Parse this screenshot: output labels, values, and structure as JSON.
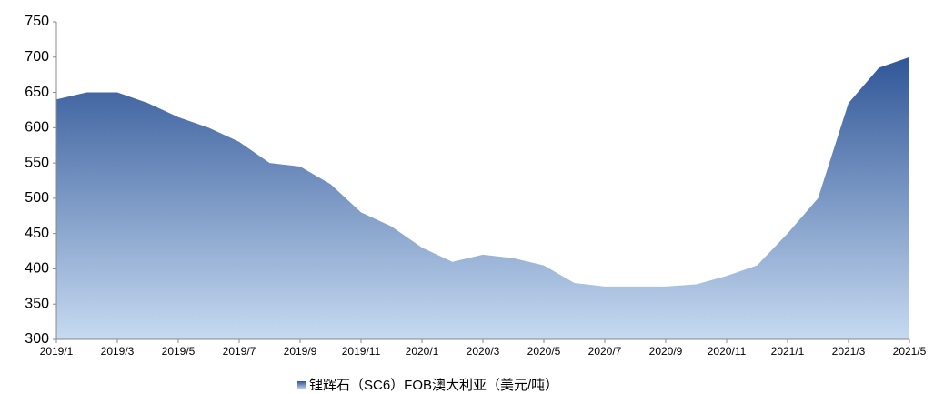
{
  "chart_data": {
    "type": "area",
    "categories": [
      "2019/1",
      null,
      "2019/3",
      null,
      "2019/5",
      null,
      "2019/7",
      null,
      "2019/9",
      null,
      "2019/11",
      null,
      "2020/1",
      null,
      "2020/3",
      null,
      "2020/5",
      null,
      "2020/7",
      null,
      "2020/9",
      null,
      "2020/11",
      null,
      "2021/1",
      null,
      "2021/3",
      null,
      "2021/5"
    ],
    "series": [
      {
        "name": "锂辉石（SC6）FOB澳大利亚（美元/吨）",
        "color": "#2f5597",
        "values": [
          640,
          650,
          650,
          635,
          615,
          600,
          580,
          550,
          545,
          520,
          480,
          460,
          430,
          410,
          420,
          415,
          405,
          380,
          375,
          375,
          375,
          378,
          390,
          405,
          450,
          500,
          635,
          685,
          700
        ]
      }
    ],
    "ylim": [
      300,
      750
    ],
    "yticks": [
      300,
      350,
      400,
      450,
      500,
      550,
      600,
      650,
      700,
      750
    ],
    "grid": false,
    "legend": "bottom"
  }
}
